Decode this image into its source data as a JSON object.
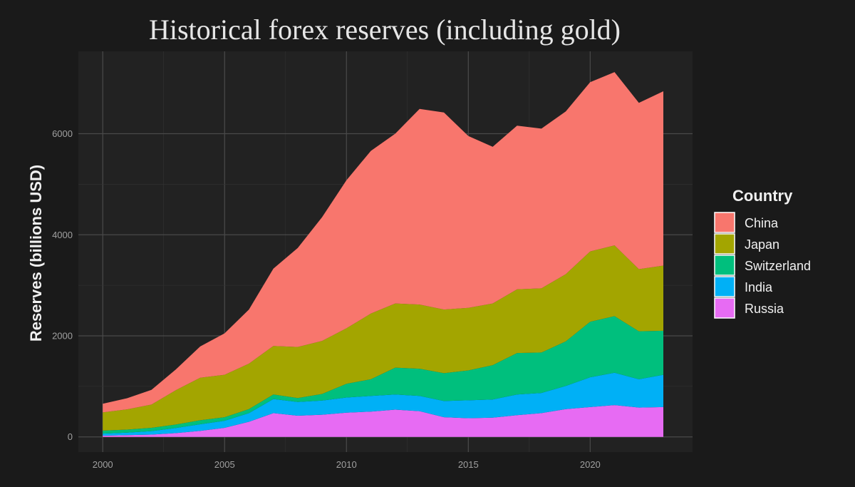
{
  "chart_data": {
    "type": "area",
    "stacked": true,
    "title": "Historical forex reserves (including gold)",
    "xlabel": "",
    "ylabel": "Reserves (billions USD)",
    "xlim": [
      1999,
      2024.2
    ],
    "ylim": [
      -300,
      7630
    ],
    "xticks": [
      2000,
      2005,
      2010,
      2015,
      2020
    ],
    "yticks": [
      0,
      2000,
      4000,
      6000
    ],
    "legend_title": "Country",
    "legend_position": "right",
    "colors": {
      "background": "#1a1a1a",
      "panel": "#222222",
      "grid": "#4a4a4a"
    },
    "x": [
      2000,
      2001,
      2002,
      2003,
      2004,
      2005,
      2006,
      2007,
      2008,
      2009,
      2010,
      2011,
      2012,
      2013,
      2014,
      2015,
      2016,
      2017,
      2018,
      2019,
      2020,
      2021,
      2022,
      2023
    ],
    "series": [
      {
        "name": "Russia",
        "color": "#e76bf3",
        "values": [
          25,
          35,
          45,
          75,
          120,
          180,
          300,
          470,
          420,
          440,
          480,
          500,
          540,
          510,
          390,
          370,
          380,
          430,
          470,
          550,
          590,
          630,
          580,
          590
        ]
      },
      {
        "name": "India",
        "color": "#00b0f6",
        "values": [
          40,
          50,
          70,
          100,
          130,
          140,
          170,
          280,
          270,
          280,
          300,
          310,
          300,
          300,
          320,
          355,
          360,
          410,
          400,
          460,
          590,
          640,
          560,
          640
        ]
      },
      {
        "name": "Switzerland",
        "color": "#00bf7d",
        "values": [
          60,
          60,
          65,
          70,
          80,
          70,
          80,
          90,
          80,
          130,
          270,
          330,
          530,
          540,
          550,
          590,
          680,
          820,
          800,
          880,
          1100,
          1120,
          950,
          870
        ]
      },
      {
        "name": "Japan",
        "color": "#a3a500",
        "values": [
          360,
          400,
          460,
          680,
          840,
          840,
          900,
          960,
          1010,
          1050,
          1100,
          1300,
          1270,
          1270,
          1260,
          1240,
          1220,
          1260,
          1270,
          1330,
          1390,
          1400,
          1230,
          1290
        ]
      },
      {
        "name": "China",
        "color": "#f8766d",
        "values": [
          170,
          220,
          290,
          410,
          620,
          820,
          1070,
          1530,
          1960,
          2450,
          2930,
          3220,
          3360,
          3870,
          3900,
          3400,
          3100,
          3240,
          3160,
          3220,
          3350,
          3430,
          3290,
          3450
        ]
      }
    ],
    "legend_order": [
      "China",
      "Japan",
      "Switzerland",
      "India",
      "Russia"
    ]
  }
}
